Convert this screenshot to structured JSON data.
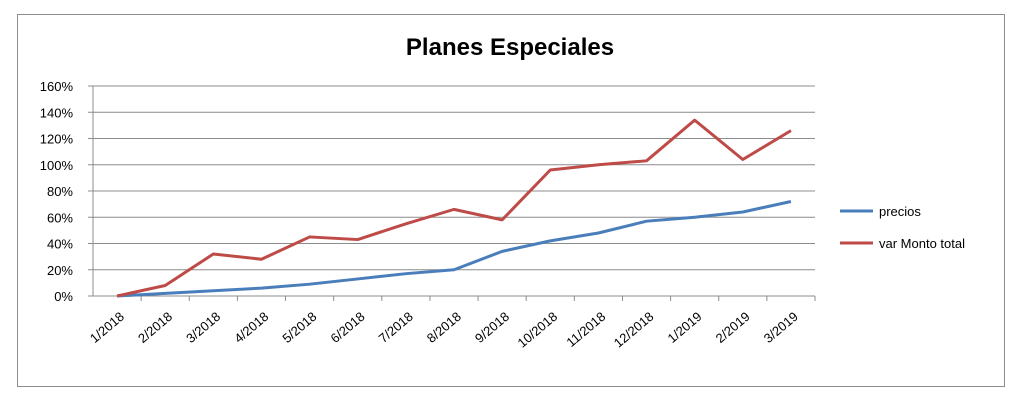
{
  "chart_data": {
    "type": "line",
    "title": "Planes Especiales",
    "xlabel": "",
    "ylabel": "",
    "categories": [
      "1/2018",
      "2/2018",
      "3/2018",
      "4/2018",
      "5/2018",
      "6/2018",
      "7/2018",
      "8/2018",
      "9/2018",
      "10/2018",
      "11/2018",
      "12/2018",
      "1/2019",
      "2/2019",
      "3/2019"
    ],
    "series": [
      {
        "name": "precios",
        "color": "#4a7ebb",
        "values": [
          0,
          2,
          4,
          6,
          9,
          13,
          17,
          20,
          34,
          42,
          48,
          57,
          60,
          64,
          72
        ]
      },
      {
        "name": "var Monto  total",
        "color": "#be4b48",
        "values": [
          0,
          8,
          32,
          28,
          45,
          43,
          55,
          66,
          58,
          96,
          100,
          103,
          134,
          104,
          126
        ]
      }
    ],
    "ylim": [
      0,
      160
    ],
    "yticks": [
      0,
      20,
      40,
      60,
      80,
      100,
      120,
      140,
      160
    ],
    "ytick_format": "percent",
    "grid": true,
    "legend": "right"
  }
}
